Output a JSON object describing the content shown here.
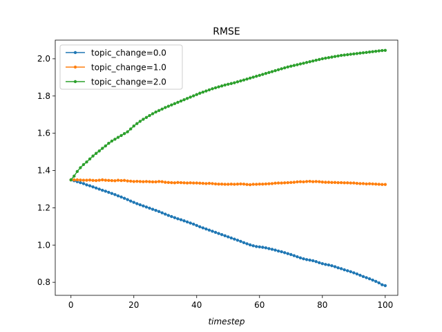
{
  "chart_data": {
    "type": "line",
    "title": "RMSE",
    "xlabel": "timestep",
    "ylabel": "",
    "xlim": [
      -5,
      104
    ],
    "ylim": [
      0.73,
      2.1
    ],
    "xticks": [
      0,
      20,
      40,
      60,
      80,
      100
    ],
    "yticks": [
      0.8,
      1.0,
      1.2,
      1.4,
      1.6,
      1.8,
      2.0
    ],
    "xtick_labels": [
      "0",
      "20",
      "40",
      "60",
      "80",
      "100"
    ],
    "ytick_labels": [
      "0.8",
      "1.0",
      "1.2",
      "1.4",
      "1.6",
      "1.8",
      "2.0"
    ],
    "grid": false,
    "legend_position": "upper-left",
    "series": [
      {
        "name": "topic_change=0.0",
        "color": "#1f77b4",
        "x_start": 0,
        "x_step": 1,
        "y": [
          1.35,
          1.345,
          1.34,
          1.335,
          1.33,
          1.323,
          1.318,
          1.312,
          1.306,
          1.3,
          1.294,
          1.289,
          1.283,
          1.277,
          1.271,
          1.264,
          1.258,
          1.251,
          1.244,
          1.236,
          1.229,
          1.222,
          1.216,
          1.21,
          1.204,
          1.198,
          1.192,
          1.186,
          1.18,
          1.173,
          1.166,
          1.159,
          1.153,
          1.147,
          1.141,
          1.136,
          1.13,
          1.124,
          1.118,
          1.112,
          1.105,
          1.098,
          1.092,
          1.086,
          1.08,
          1.074,
          1.068,
          1.062,
          1.056,
          1.05,
          1.044,
          1.038,
          1.032,
          1.026,
          1.02,
          1.013,
          1.007,
          1.001,
          0.996,
          0.992,
          0.99,
          0.988,
          0.985,
          0.981,
          0.977,
          0.973,
          0.968,
          0.964,
          0.959,
          0.954,
          0.949,
          0.943,
          0.937,
          0.931,
          0.926,
          0.922,
          0.919,
          0.916,
          0.911,
          0.905,
          0.9,
          0.896,
          0.893,
          0.889,
          0.884,
          0.878,
          0.873,
          0.867,
          0.862,
          0.857,
          0.851,
          0.845,
          0.838,
          0.831,
          0.825,
          0.819,
          0.812,
          0.805,
          0.797,
          0.787,
          0.782
        ]
      },
      {
        "name": "topic_change=1.0",
        "color": "#ff7f0e",
        "x_start": 0,
        "x_step": 1,
        "y": [
          1.35,
          1.35,
          1.35,
          1.349,
          1.348,
          1.348,
          1.349,
          1.347,
          1.346,
          1.348,
          1.35,
          1.348,
          1.347,
          1.346,
          1.345,
          1.348,
          1.346,
          1.347,
          1.344,
          1.343,
          1.341,
          1.342,
          1.341,
          1.34,
          1.341,
          1.34,
          1.339,
          1.339,
          1.341,
          1.34,
          1.337,
          1.336,
          1.335,
          1.334,
          1.336,
          1.335,
          1.334,
          1.333,
          1.334,
          1.333,
          1.333,
          1.332,
          1.331,
          1.33,
          1.331,
          1.33,
          1.328,
          1.327,
          1.327,
          1.326,
          1.326,
          1.327,
          1.326,
          1.327,
          1.328,
          1.327,
          1.325,
          1.324,
          1.326,
          1.326,
          1.327,
          1.327,
          1.328,
          1.329,
          1.33,
          1.332,
          1.333,
          1.333,
          1.334,
          1.335,
          1.336,
          1.337,
          1.339,
          1.34,
          1.339,
          1.341,
          1.342,
          1.34,
          1.341,
          1.34,
          1.338,
          1.337,
          1.337,
          1.336,
          1.336,
          1.335,
          1.335,
          1.334,
          1.334,
          1.333,
          1.333,
          1.331,
          1.33,
          1.33,
          1.328,
          1.329,
          1.328,
          1.327,
          1.326,
          1.325,
          1.325
        ]
      },
      {
        "name": "topic_change=2.0",
        "color": "#2ca02c",
        "x_start": 0,
        "x_step": 1,
        "y": [
          1.35,
          1.37,
          1.395,
          1.415,
          1.432,
          1.446,
          1.462,
          1.478,
          1.492,
          1.505,
          1.519,
          1.532,
          1.546,
          1.558,
          1.568,
          1.578,
          1.588,
          1.598,
          1.608,
          1.623,
          1.639,
          1.652,
          1.664,
          1.675,
          1.685,
          1.695,
          1.705,
          1.714,
          1.722,
          1.73,
          1.738,
          1.745,
          1.752,
          1.759,
          1.766,
          1.773,
          1.78,
          1.787,
          1.794,
          1.801,
          1.808,
          1.815,
          1.821,
          1.827,
          1.833,
          1.839,
          1.844,
          1.849,
          1.854,
          1.859,
          1.863,
          1.867,
          1.871,
          1.876,
          1.881,
          1.886,
          1.891,
          1.896,
          1.901,
          1.906,
          1.911,
          1.916,
          1.921,
          1.926,
          1.931,
          1.936,
          1.941,
          1.946,
          1.951,
          1.956,
          1.96,
          1.964,
          1.968,
          1.972,
          1.976,
          1.98,
          1.984,
          1.988,
          1.992,
          1.996,
          2.0,
          2.003,
          2.006,
          2.009,
          2.012,
          2.015,
          2.018,
          2.02,
          2.022,
          2.024,
          2.026,
          2.028,
          2.03,
          2.032,
          2.034,
          2.036,
          2.038,
          2.04,
          2.042,
          2.044,
          2.045
        ]
      }
    ]
  }
}
